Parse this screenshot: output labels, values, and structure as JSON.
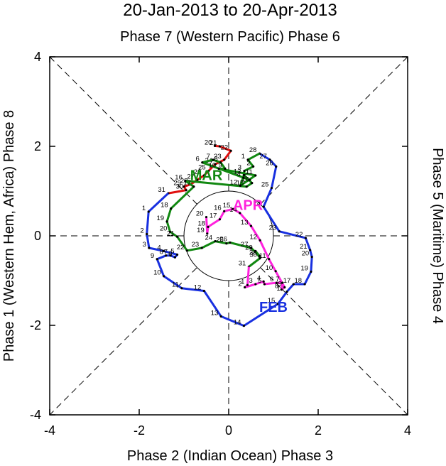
{
  "chart_data": {
    "type": "line",
    "title": "20-Jan-2013 to 20-Apr-2013",
    "top_label": "Phase 7 (Western Pacific) Phase 6",
    "xlabel": "Phase 2 (Indian Ocean) Phase 3",
    "left_label": "Phase 1 (Western Hem, Africa) Phase 8",
    "right_label": "Phase 5 (Maritime) Phase 4",
    "xlim": [
      -4,
      4
    ],
    "ylim": [
      -4,
      4
    ],
    "x_ticks": [
      -4,
      -2,
      0,
      2,
      4
    ],
    "y_ticks": [
      -4,
      -2,
      0,
      2,
      4
    ],
    "x_tick_labels": [
      "-4",
      "-2",
      "0",
      "2",
      "4"
    ],
    "y_tick_labels": [
      "-4",
      "-2",
      "0",
      "2",
      "4"
    ],
    "unit_circle_radius": 1,
    "series": [
      {
        "name": "JAN",
        "color": "#e01010",
        "points": [
          {
            "day": "20",
            "x": -0.31,
            "y": 2.01
          },
          {
            "day": "21",
            "x": -0.2,
            "y": 2.0
          },
          {
            "day": "22",
            "x": 0.05,
            "y": 1.9
          },
          {
            "day": "23",
            "x": -0.1,
            "y": 1.7
          },
          {
            "day": "24",
            "x": -0.3,
            "y": 1.6
          },
          {
            "day": "25",
            "x": -0.45,
            "y": 1.45
          },
          {
            "day": "26",
            "x": -0.55,
            "y": 1.35
          },
          {
            "day": "27",
            "x": -0.7,
            "y": 1.25
          },
          {
            "day": "28",
            "x": -0.85,
            "y": 1.15
          },
          {
            "day": "29",
            "x": -1.0,
            "y": 1.1
          },
          {
            "day": "30",
            "x": -0.95,
            "y": 1.02
          },
          {
            "day": "31",
            "x": -1.35,
            "y": 0.95
          }
        ]
      },
      {
        "name": "FEB",
        "color": "#1830e0",
        "points": [
          {
            "day": "1",
            "x": -1.79,
            "y": 0.54
          },
          {
            "day": "2",
            "x": -1.83,
            "y": 0.04
          },
          {
            "day": "3",
            "x": -1.78,
            "y": -0.27
          },
          {
            "day": "4",
            "x": -1.45,
            "y": -0.34
          },
          {
            "day": "5",
            "x": -1.15,
            "y": -0.42
          },
          {
            "day": "6",
            "x": -1.2,
            "y": -0.48
          },
          {
            "day": "7",
            "x": -1.3,
            "y": -0.44
          },
          {
            "day": "8",
            "x": -1.4,
            "y": -0.44
          },
          {
            "day": "9",
            "x": -1.6,
            "y": -0.52
          },
          {
            "day": "10",
            "x": -1.45,
            "y": -0.9
          },
          {
            "day": "11",
            "x": -1.05,
            "y": -1.17
          },
          {
            "day": "12",
            "x": -0.55,
            "y": -1.23
          },
          {
            "day": "13",
            "x": -0.17,
            "y": -1.8
          },
          {
            "day": "14",
            "x": 0.34,
            "y": -2.01
          },
          {
            "day": "15",
            "x": 1.1,
            "y": -1.52
          },
          {
            "day": "16",
            "x": 1.3,
            "y": -1.25
          },
          {
            "day": "17",
            "x": 1.45,
            "y": -1.08
          },
          {
            "day": "18",
            "x": 1.7,
            "y": -1.08
          },
          {
            "day": "19",
            "x": 1.84,
            "y": -0.8
          },
          {
            "day": "20",
            "x": 1.86,
            "y": -0.47
          },
          {
            "day": "21",
            "x": 1.82,
            "y": -0.32
          },
          {
            "day": "22",
            "x": 1.72,
            "y": -0.05
          },
          {
            "day": "23",
            "x": 1.13,
            "y": 0.1
          },
          {
            "day": "24",
            "x": 0.78,
            "y": 0.65
          },
          {
            "day": "25",
            "x": 0.96,
            "y": 1.07
          },
          {
            "day": "26",
            "x": 1.06,
            "y": 1.55
          },
          {
            "day": "27",
            "x": 0.92,
            "y": 1.7
          },
          {
            "day": "28",
            "x": 0.69,
            "y": 1.84
          }
        ]
      },
      {
        "name": "MAR",
        "color": "#118811",
        "points": [
          {
            "day": "1",
            "x": 0.43,
            "y": 1.7
          },
          {
            "day": "2",
            "x": 0.55,
            "y": 1.55
          },
          {
            "day": "3",
            "x": 0.35,
            "y": 1.45
          },
          {
            "day": "4",
            "x": 0.33,
            "y": 1.3
          },
          {
            "day": "5",
            "x": 0.47,
            "y": 1.25
          },
          {
            "day": "6",
            "x": -0.59,
            "y": 1.64
          },
          {
            "day": "7",
            "x": -0.35,
            "y": 1.7
          },
          {
            "day": "8",
            "x": -0.18,
            "y": 1.64
          },
          {
            "day": "9",
            "x": -0.08,
            "y": 1.5
          },
          {
            "day": "10",
            "x": -0.22,
            "y": 1.5
          },
          {
            "day": "11",
            "x": 0.6,
            "y": 1.35
          },
          {
            "day": "12",
            "x": 0.26,
            "y": 1.12
          },
          {
            "day": "13",
            "x": 0.34,
            "y": 1.36
          },
          {
            "day": "14",
            "x": 0.52,
            "y": 1.18
          },
          {
            "day": "15",
            "x": 0.4,
            "y": 1.1
          },
          {
            "day": "16",
            "x": -0.97,
            "y": 1.23
          },
          {
            "day": "17",
            "x": -0.78,
            "y": 1.1
          },
          {
            "day": "18",
            "x": -1.29,
            "y": 0.61
          },
          {
            "day": "19",
            "x": -1.38,
            "y": 0.32
          },
          {
            "day": "20",
            "x": -1.31,
            "y": 0.09
          },
          {
            "day": "21",
            "x": -1.15,
            "y": -0.02
          },
          {
            "day": "22",
            "x": -0.93,
            "y": -0.33
          },
          {
            "day": "23",
            "x": -0.6,
            "y": -0.27
          },
          {
            "day": "24",
            "x": -0.3,
            "y": -0.12
          },
          {
            "day": "25",
            "x": -0.05,
            "y": -0.17
          },
          {
            "day": "26",
            "x": 0.03,
            "y": -0.15
          },
          {
            "day": "27",
            "x": 0.5,
            "y": -0.27
          },
          {
            "day": "28",
            "x": 0.69,
            "y": -0.45
          },
          {
            "day": "29",
            "x": 0.6,
            "y": -0.34
          },
          {
            "day": "30",
            "x": 0.7,
            "y": -0.5
          },
          {
            "day": "31",
            "x": 0.45,
            "y": -0.69
          }
        ]
      },
      {
        "name": "APR",
        "color": "#ff22dd",
        "points": [
          {
            "day": "1",
            "x": 0.42,
            "y": -1.1
          },
          {
            "day": "2",
            "x": 0.36,
            "y": -1.15
          },
          {
            "day": "3",
            "x": 0.6,
            "y": -1.08
          },
          {
            "day": "4",
            "x": 0.78,
            "y": -1.02
          },
          {
            "day": "5",
            "x": 0.8,
            "y": -1.08
          },
          {
            "day": "6",
            "x": 1.07,
            "y": -1.05
          },
          {
            "day": "7",
            "x": 1.2,
            "y": -1.05
          },
          {
            "day": "8",
            "x": 1.18,
            "y": -1.2
          },
          {
            "day": "9",
            "x": 1.25,
            "y": -1.15
          },
          {
            "day": "10",
            "x": 1.05,
            "y": -0.79
          },
          {
            "day": "11",
            "x": 0.9,
            "y": -0.52
          },
          {
            "day": "12",
            "x": 0.7,
            "y": -0.1
          },
          {
            "day": "13",
            "x": 0.5,
            "y": 0.22
          },
          {
            "day": "14",
            "x": 0.25,
            "y": 0.51
          },
          {
            "day": "15",
            "x": 0.1,
            "y": 0.6
          },
          {
            "day": "16",
            "x": -0.1,
            "y": 0.55
          },
          {
            "day": "17",
            "x": -0.2,
            "y": 0.37
          },
          {
            "day": "18",
            "x": -0.46,
            "y": 0.2
          },
          {
            "day": "19",
            "x": -0.48,
            "y": 0.05
          },
          {
            "day": "20",
            "x": -0.5,
            "y": 0.42
          }
        ]
      }
    ],
    "month_labels": [
      {
        "text": "FEB",
        "x": 1.0,
        "y": -1.7,
        "color": "#1830e0"
      },
      {
        "text": "MAR",
        "x": -0.5,
        "y": 1.25,
        "color": "#118811"
      },
      {
        "text": "APR",
        "x": 0.43,
        "y": 0.58,
        "color": "#ff22dd"
      }
    ]
  }
}
